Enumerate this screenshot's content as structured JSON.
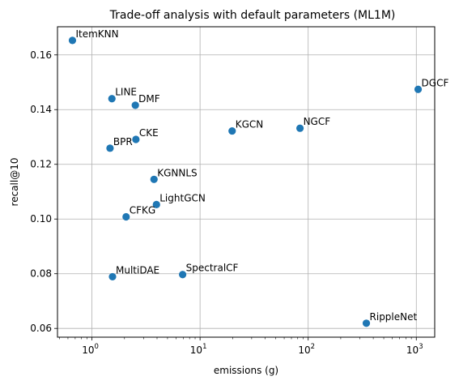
{
  "chart_data": {
    "type": "scatter",
    "title": "Trade-off analysis with default parameters (ML1M)",
    "xlabel": "emissions (g)",
    "ylabel": "recall@10",
    "x_scale": "log",
    "xlim": [
      0.48,
      1480
    ],
    "ylim": [
      0.0568,
      0.1703
    ],
    "x_ticks": [
      {
        "base": "10",
        "exp": "0",
        "value": 1
      },
      {
        "base": "10",
        "exp": "1",
        "value": 10
      },
      {
        "base": "10",
        "exp": "2",
        "value": 100
      },
      {
        "base": "10",
        "exp": "3",
        "value": 1000
      }
    ],
    "y_ticks": [
      "0.06",
      "0.08",
      "0.10",
      "0.12",
      "0.14",
      "0.16"
    ],
    "grid": true,
    "marker_color": "#1f77b4",
    "points": [
      {
        "label": "ItemKNN",
        "x": 0.66,
        "y": 0.1653
      },
      {
        "label": "LINE",
        "x": 1.53,
        "y": 0.144
      },
      {
        "label": "DMF",
        "x": 2.52,
        "y": 0.1416
      },
      {
        "label": "BPR",
        "x": 1.47,
        "y": 0.1259
      },
      {
        "label": "CKE",
        "x": 2.55,
        "y": 0.1291
      },
      {
        "label": "KGCN",
        "x": 19.8,
        "y": 0.1322
      },
      {
        "label": "NGCF",
        "x": 84.0,
        "y": 0.1332
      },
      {
        "label": "DGCF",
        "x": 1040,
        "y": 0.1474
      },
      {
        "label": "KGNNLS",
        "x": 3.75,
        "y": 0.1145
      },
      {
        "label": "LightGCN",
        "x": 3.95,
        "y": 0.1053
      },
      {
        "label": "CFKG",
        "x": 2.07,
        "y": 0.1008
      },
      {
        "label": "MultiDAE",
        "x": 1.55,
        "y": 0.0789
      },
      {
        "label": "SpectralCF",
        "x": 6.9,
        "y": 0.0797
      },
      {
        "label": "RippleNet",
        "x": 345,
        "y": 0.0619
      }
    ]
  }
}
